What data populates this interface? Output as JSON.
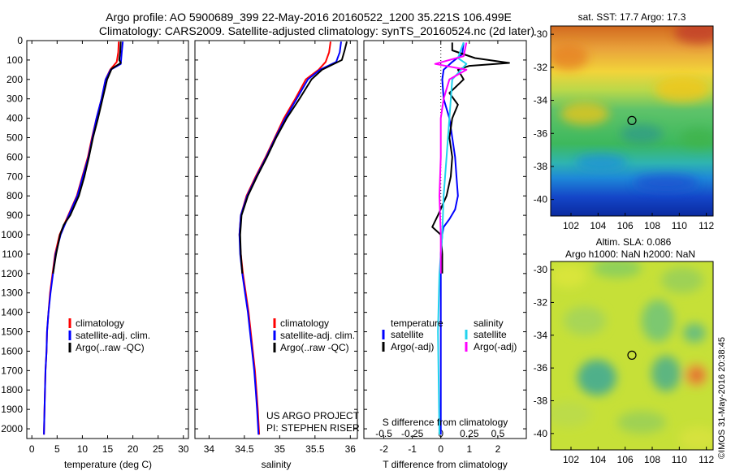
{
  "header": {
    "line1": "Argo profile: AO 5900689_399 22-May-2016 20160522_1200 35.221S 106.499E",
    "line2": "Climatology: CARS2009. Satellite-adjusted climatology: synTS_20160524.nc (2d later)"
  },
  "side_text": "©IMOS 31-May-2016 20:38:45",
  "colors": {
    "climatology": "#ff0000",
    "satellite": "#0000ff",
    "argo": "#000000",
    "sal_satellite": "#22d3ee",
    "sal_argo": "#ff00ff"
  },
  "chart_data": [
    {
      "type": "line",
      "panel": "temperature",
      "xlabel": "temperature (deg C)",
      "xlim": [
        -1,
        31
      ],
      "xticks": [
        0,
        5,
        10,
        15,
        20,
        25,
        30
      ],
      "ylim": [
        0,
        2050
      ],
      "yticks": [
        0,
        100,
        200,
        300,
        400,
        500,
        600,
        700,
        800,
        900,
        1000,
        1100,
        1200,
        1300,
        1400,
        1500,
        1600,
        1700,
        1800,
        1900,
        2000
      ],
      "y_reversed": true,
      "legend": [
        "climatology",
        "satellite-adj. clim.",
        "Argo(..raw -QC)"
      ],
      "series": [
        {
          "name": "climatology",
          "color": "#ff0000",
          "points": [
            [
              17.2,
              5
            ],
            [
              17.1,
              60
            ],
            [
              16.8,
              110
            ],
            [
              15.5,
              150
            ],
            [
              14.6,
              200
            ],
            [
              13.8,
              300
            ],
            [
              12.8,
              400
            ],
            [
              11.9,
              500
            ],
            [
              11.1,
              600
            ],
            [
              10.0,
              700
            ],
            [
              8.9,
              800
            ],
            [
              7.2,
              900
            ],
            [
              5.5,
              1000
            ],
            [
              4.6,
              1100
            ],
            [
              4.1,
              1200
            ],
            [
              3.6,
              1300
            ],
            [
              3.3,
              1400
            ],
            [
              3.0,
              1500
            ],
            [
              2.9,
              1600
            ],
            [
              2.7,
              1700
            ],
            [
              2.6,
              1800
            ],
            [
              2.5,
              1900
            ],
            [
              2.4,
              2030
            ]
          ]
        },
        {
          "name": "satellite-adj. clim.",
          "color": "#0000ff",
          "points": [
            [
              18.0,
              5
            ],
            [
              17.8,
              60
            ],
            [
              17.6,
              120
            ],
            [
              15.6,
              150
            ],
            [
              14.6,
              200
            ],
            [
              13.8,
              300
            ],
            [
              12.8,
              400
            ],
            [
              12.0,
              500
            ],
            [
              11.2,
              600
            ],
            [
              10.1,
              700
            ],
            [
              9.0,
              800
            ],
            [
              7.3,
              900
            ],
            [
              5.7,
              1000
            ],
            [
              4.7,
              1100
            ],
            [
              4.2,
              1200
            ],
            [
              3.7,
              1300
            ],
            [
              3.3,
              1400
            ],
            [
              3.0,
              1500
            ],
            [
              2.9,
              1600
            ],
            [
              2.7,
              1700
            ],
            [
              2.6,
              1800
            ],
            [
              2.5,
              1900
            ],
            [
              2.4,
              2030
            ]
          ]
        },
        {
          "name": "Argo(..raw -QC)",
          "color": "#000000",
          "points": [
            [
              17.6,
              5
            ],
            [
              17.5,
              60
            ],
            [
              17.3,
              100
            ],
            [
              17.6,
              115
            ],
            [
              15.8,
              145
            ],
            [
              14.9,
              200
            ],
            [
              14.0,
              300
            ],
            [
              13.1,
              400
            ],
            [
              12.1,
              500
            ],
            [
              11.3,
              600
            ],
            [
              10.4,
              700
            ],
            [
              9.3,
              800
            ],
            [
              7.6,
              900
            ],
            [
              6.3,
              950
            ],
            [
              5.6,
              1000
            ],
            [
              4.8,
              1100
            ],
            [
              4.2,
              1200
            ]
          ]
        }
      ]
    },
    {
      "type": "line",
      "panel": "salinity",
      "xlabel": "salinity",
      "xlim": [
        33.8,
        36.1
      ],
      "xticks": [
        34,
        34.5,
        35,
        35.5,
        36
      ],
      "ylim": [
        0,
        2050
      ],
      "y_reversed": true,
      "legend": [
        "climatology",
        "satellite-adj. clim.",
        "Argo(..raw -QC)"
      ],
      "annotation": [
        "US ARGO PROJECT",
        "PI: STEPHEN RISER"
      ],
      "series": [
        {
          "name": "climatology",
          "color": "#ff0000",
          "points": [
            [
              35.72,
              5
            ],
            [
              35.7,
              60
            ],
            [
              35.65,
              110
            ],
            [
              35.55,
              150
            ],
            [
              35.37,
              200
            ],
            [
              35.22,
              300
            ],
            [
              35.06,
              400
            ],
            [
              34.93,
              500
            ],
            [
              34.8,
              600
            ],
            [
              34.66,
              700
            ],
            [
              34.53,
              800
            ],
            [
              34.45,
              900
            ],
            [
              34.43,
              1000
            ],
            [
              34.45,
              1100
            ],
            [
              34.48,
              1200
            ],
            [
              34.52,
              1300
            ],
            [
              34.56,
              1400
            ],
            [
              34.59,
              1500
            ],
            [
              34.62,
              1600
            ],
            [
              34.65,
              1700
            ],
            [
              34.67,
              1800
            ],
            [
              34.69,
              1900
            ],
            [
              34.71,
              2030
            ]
          ]
        },
        {
          "name": "satellite-adj. clim.",
          "color": "#0000ff",
          "points": [
            [
              35.87,
              5
            ],
            [
              35.85,
              60
            ],
            [
              35.8,
              110
            ],
            [
              35.57,
              150
            ],
            [
              35.4,
              200
            ],
            [
              35.24,
              300
            ],
            [
              35.08,
              400
            ],
            [
              34.94,
              500
            ],
            [
              34.81,
              600
            ],
            [
              34.67,
              700
            ],
            [
              34.54,
              800
            ],
            [
              34.45,
              900
            ],
            [
              34.43,
              1000
            ],
            [
              34.44,
              1100
            ],
            [
              34.47,
              1200
            ],
            [
              34.51,
              1300
            ],
            [
              34.55,
              1400
            ],
            [
              34.58,
              1500
            ],
            [
              34.61,
              1600
            ],
            [
              34.64,
              1700
            ],
            [
              34.66,
              1800
            ],
            [
              34.68,
              1900
            ],
            [
              34.7,
              2030
            ]
          ]
        },
        {
          "name": "Argo(..raw -QC)",
          "color": "#000000",
          "points": [
            [
              35.95,
              5
            ],
            [
              35.92,
              50
            ],
            [
              35.88,
              100
            ],
            [
              35.6,
              150
            ],
            [
              35.45,
              200
            ],
            [
              35.28,
              300
            ],
            [
              35.1,
              400
            ],
            [
              34.95,
              500
            ],
            [
              34.82,
              600
            ],
            [
              34.68,
              700
            ],
            [
              34.55,
              800
            ],
            [
              34.46,
              900
            ],
            [
              34.44,
              1000
            ],
            [
              34.45,
              1100
            ],
            [
              34.47,
              1200
            ]
          ]
        }
      ]
    },
    {
      "type": "line",
      "panel": "difference",
      "xlabel": "T difference from climatology",
      "xlabel_top": "S difference from climatology",
      "xlim": [
        -2.7,
        3.0
      ],
      "xticks": [
        -2,
        -1,
        0,
        1,
        2
      ],
      "top_ticks": [
        "-0.5",
        "-0.25",
        "0",
        "0.25",
        "0.5"
      ],
      "top_tick_x": [
        -2,
        -1,
        0,
        1,
        2
      ],
      "ylim": [
        0,
        2050
      ],
      "y_reversed": true,
      "legend_titles": [
        "temperature",
        "salinity"
      ],
      "legend": [
        "satellite",
        "Argo(-adj)",
        "satellite",
        "Argo(-adj)"
      ],
      "series": [
        {
          "name": "temperature satellite",
          "color": "#0000ff",
          "points": [
            [
              0.8,
              10
            ],
            [
              0.75,
              70
            ],
            [
              0.4,
              110
            ],
            [
              0.1,
              150
            ],
            [
              0.05,
              200
            ],
            [
              0.1,
              300
            ],
            [
              0.3,
              400
            ],
            [
              0.4,
              500
            ],
            [
              0.5,
              600
            ],
            [
              0.55,
              700
            ],
            [
              0.6,
              800
            ],
            [
              0.5,
              870
            ],
            [
              0.3,
              920
            ],
            [
              0.1,
              960
            ],
            [
              0.05,
              1000
            ],
            [
              0.0,
              1100
            ],
            [
              0.0,
              1500
            ],
            [
              0.0,
              2030
            ]
          ]
        },
        {
          "name": "temperature Argo(-adj)",
          "color": "#000000",
          "points": [
            [
              0.4,
              10
            ],
            [
              0.4,
              50
            ],
            [
              1.2,
              90
            ],
            [
              2.4,
              115
            ],
            [
              1.0,
              130
            ],
            [
              0.6,
              150
            ],
            [
              0.8,
              200
            ],
            [
              0.3,
              270
            ],
            [
              0.6,
              330
            ],
            [
              0.4,
              400
            ],
            [
              0.3,
              500
            ],
            [
              0.4,
              600
            ],
            [
              0.35,
              700
            ],
            [
              0.2,
              800
            ],
            [
              -0.1,
              900
            ],
            [
              -0.3,
              960
            ],
            [
              0.0,
              1000
            ],
            [
              0.05,
              1100
            ],
            [
              0.05,
              1200
            ]
          ]
        },
        {
          "name": "salinity satellite",
          "color": "#22d3ee",
          "points": [
            [
              0.8,
              10
            ],
            [
              0.6,
              90
            ],
            [
              0.9,
              120
            ],
            [
              0.4,
              200
            ],
            [
              0.3,
              400
            ],
            [
              0.2,
              600
            ],
            [
              0.1,
              800
            ],
            [
              0.05,
              1000
            ],
            [
              -0.05,
              1200
            ],
            [
              -0.1,
              1500
            ],
            [
              -0.05,
              2030
            ]
          ]
        },
        {
          "name": "salinity Argo(-adj)",
          "color": "#ff00ff",
          "points": [
            [
              0.9,
              10
            ],
            [
              0.8,
              80
            ],
            [
              -0.2,
              120
            ],
            [
              0.9,
              150
            ],
            [
              0.3,
              200
            ],
            [
              0.1,
              300
            ],
            [
              0.0,
              400
            ],
            [
              0.0,
              600
            ],
            [
              -0.05,
              800
            ],
            [
              0.0,
              1000
            ],
            [
              0.0,
              1200
            ]
          ]
        }
      ]
    },
    {
      "type": "heatmap",
      "panel": "sst_map",
      "title": "sat. SST: 17.7 Argo: 17.3",
      "xlim": [
        100.5,
        112.5
      ],
      "ylim": [
        -41,
        -29.5
      ],
      "xticks": [
        102,
        104,
        106,
        108,
        110,
        112
      ],
      "yticks": [
        -30,
        -32,
        -34,
        -36,
        -38,
        -40
      ],
      "marker": {
        "lon": 106.5,
        "lat": -35.22
      }
    },
    {
      "type": "heatmap",
      "panel": "sla_map",
      "title": "Altim. SLA: 0.086",
      "subtitle": "Argo h1000: NaN h2000: NaN",
      "xlim": [
        100.5,
        112.5
      ],
      "ylim": [
        -41,
        -29.5
      ],
      "xticks": [
        102,
        104,
        106,
        108,
        110,
        112
      ],
      "yticks": [
        -30,
        -32,
        -34,
        -36,
        -38,
        -40
      ],
      "marker": {
        "lon": 106.5,
        "lat": -35.22
      }
    }
  ]
}
